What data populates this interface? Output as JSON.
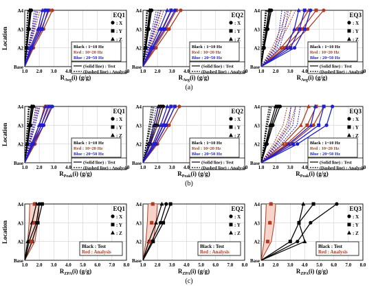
{
  "figure": {
    "y_axis_label": "Location",
    "row_captions": [
      "(a)",
      "(b)",
      "(c)"
    ],
    "col_titles": [
      "EQ1",
      "EQ2",
      "EQ3"
    ],
    "x_tick_labels": [
      "1.0",
      "2.0",
      "3.0",
      "4.0",
      "5.0",
      "6.0",
      "7.0",
      "8.0"
    ],
    "y_tick_labels": [
      "Base",
      "A2",
      "A3",
      "A4"
    ],
    "x_labels": [
      "R_Avg(i) (g/g)",
      "R_Peak(i) (g/g)",
      "R_ZPA(i) (g/g)"
    ],
    "legend_markers": [
      {
        "marker": "circle",
        "label": ": X"
      },
      {
        "marker": "square",
        "label": ": Y"
      },
      {
        "marker": "triangle",
        "label": ": Z"
      }
    ],
    "legend_freq": [
      {
        "text": "Black : 1~10 Hz",
        "color": "#000000"
      },
      {
        "text": "Red : 10~20 Hz",
        "color": "#b03a20"
      },
      {
        "text": "Blue : 20~50 Hz",
        "color": "#1f1fd0"
      }
    ],
    "legend_lines": [
      {
        "style": "solid",
        "text": "(Solid line) : Test"
      },
      {
        "style": "dashed",
        "text": "(Dashed line) : Analysis"
      }
    ],
    "legend_zpa": [
      {
        "text": "Black : Test",
        "color": "#000000"
      },
      {
        "text": "Red : Analysis",
        "color": "#b03a20"
      }
    ]
  },
  "colors": {
    "black": "#000000",
    "red": "#b03a20",
    "blue": "#1f1fd0",
    "fill_red": "#f4c4b8"
  },
  "chart_data": [
    {
      "type": "line",
      "row": "(a)",
      "title": "EQ1",
      "xlabel": "R_Avg(i) (g/g)",
      "ylabel": "Location",
      "xlim": [
        1,
        8
      ],
      "locations": [
        "Base",
        "A2",
        "A3",
        "A4"
      ],
      "series": [
        {
          "name": "Black : 1~10 Hz",
          "x": [
            1.0,
            1.15,
            1.3,
            1.45
          ]
        },
        {
          "name": "Red : 10~20 Hz",
          "x": [
            1.0,
            1.6,
            2.3,
            2.9
          ]
        },
        {
          "name": "Blue : 20~50 Hz",
          "x": [
            1.0,
            1.5,
            2.2,
            2.6
          ]
        }
      ]
    },
    {
      "type": "line",
      "row": "(a)",
      "title": "EQ2",
      "xlabel": "R_Avg(i) (g/g)",
      "ylabel": "Location",
      "xlim": [
        1,
        8
      ],
      "locations": [
        "Base",
        "A2",
        "A3",
        "A4"
      ],
      "series": [
        {
          "name": "Black : 1~10 Hz",
          "x": [
            1.0,
            1.2,
            1.4,
            1.6
          ]
        },
        {
          "name": "Red : 10~20 Hz",
          "x": [
            1.0,
            1.9,
            2.8,
            3.6
          ]
        },
        {
          "name": "Blue : 20~50 Hz",
          "x": [
            1.0,
            1.7,
            2.5,
            3.2
          ]
        }
      ]
    },
    {
      "type": "line",
      "row": "(a)",
      "title": "EQ3",
      "xlabel": "R_Avg(i) (g/g)",
      "ylabel": "Location",
      "xlim": [
        1,
        8
      ],
      "locations": [
        "Base",
        "A2",
        "A3",
        "A4"
      ],
      "series": [
        {
          "name": "Black : 1~10 Hz",
          "x": [
            1.0,
            1.2,
            1.45,
            1.7
          ]
        },
        {
          "name": "Red : 10~20 Hz",
          "x": [
            1.0,
            2.8,
            4.2,
            5.3
          ]
        },
        {
          "name": "Blue : 20~50 Hz",
          "x": [
            1.0,
            3.3,
            4.0,
            4.4
          ]
        }
      ]
    },
    {
      "type": "line",
      "row": "(b)",
      "title": "EQ1",
      "xlabel": "R_Peak(i) (g/g)",
      "ylabel": "Location",
      "xlim": [
        1,
        8
      ],
      "locations": [
        "Base",
        "A2",
        "A3",
        "A4"
      ],
      "series": [
        {
          "name": "Black : 1~10 Hz",
          "x": [
            1.0,
            1.2,
            1.4,
            1.6
          ]
        },
        {
          "name": "Red : 10~20 Hz",
          "x": [
            1.0,
            1.7,
            2.3,
            2.8
          ]
        },
        {
          "name": "Blue : 20~50 Hz",
          "x": [
            1.0,
            1.6,
            2.3,
            2.9
          ]
        }
      ]
    },
    {
      "type": "line",
      "row": "(b)",
      "title": "EQ2",
      "xlabel": "R_Peak(i) (g/g)",
      "ylabel": "Location",
      "xlim": [
        1,
        8
      ],
      "locations": [
        "Base",
        "A2",
        "A3",
        "A4"
      ],
      "series": [
        {
          "name": "Black : 1~10 Hz",
          "x": [
            1.0,
            1.5,
            2.0,
            2.4
          ]
        },
        {
          "name": "Red : 10~20 Hz",
          "x": [
            1.0,
            2.0,
            2.8,
            3.5
          ]
        },
        {
          "name": "Blue : 20~50 Hz",
          "x": [
            1.0,
            1.9,
            2.6,
            3.2
          ]
        }
      ]
    },
    {
      "type": "line",
      "row": "(b)",
      "title": "EQ3",
      "xlabel": "R_Peak(i) (g/g)",
      "ylabel": "Location",
      "xlim": [
        1,
        8
      ],
      "locations": [
        "Base",
        "A2",
        "A3",
        "A4"
      ],
      "series": [
        {
          "name": "Black : 1~10 Hz",
          "x": [
            1.0,
            1.4,
            1.8,
            2.3
          ]
        },
        {
          "name": "Red : 10~20 Hz",
          "x": [
            1.0,
            3.0,
            4.6,
            5.3
          ]
        },
        {
          "name": "Blue : 20~50 Hz",
          "x": [
            1.0,
            3.5,
            5.5,
            5.9
          ]
        }
      ]
    },
    {
      "type": "line",
      "row": "(c)",
      "title": "EQ1",
      "xlabel": "R_ZPA(i) (g/g)",
      "ylabel": "Location",
      "xlim": [
        1,
        8
      ],
      "locations": [
        "Base",
        "A2",
        "A3",
        "A4"
      ],
      "series": [
        {
          "name": "X",
          "x": [
            1.0,
            1.3,
            1.8,
            2.0
          ]
        },
        {
          "name": "Y",
          "x": [
            1.0,
            1.5,
            1.9,
            2.2
          ]
        },
        {
          "name": "Z",
          "x": [
            1.0,
            1.2,
            1.5,
            1.8
          ]
        }
      ]
    },
    {
      "type": "line",
      "row": "(c)",
      "title": "EQ2",
      "xlabel": "R_ZPA(i) (g/g)",
      "ylabel": "Location",
      "xlim": [
        1,
        8
      ],
      "locations": [
        "Base",
        "A2",
        "A3",
        "A4"
      ],
      "series": [
        {
          "name": "X",
          "x": [
            1.0,
            1.6,
            2.2,
            2.6
          ]
        },
        {
          "name": "Y",
          "x": [
            1.0,
            1.7,
            2.4,
            2.9
          ]
        },
        {
          "name": "Z",
          "x": [
            1.0,
            1.4,
            1.9,
            2.3
          ]
        }
      ]
    },
    {
      "type": "line",
      "row": "(c)",
      "title": "EQ3",
      "xlabel": "R_ZPA(i) (g/g)",
      "ylabel": "Location",
      "xlim": [
        1,
        8
      ],
      "locations": [
        "Base",
        "A2",
        "A3",
        "A4"
      ],
      "series": [
        {
          "name": "X",
          "x": [
            1.0,
            3.5,
            4.4,
            6.2
          ]
        },
        {
          "name": "Y",
          "x": [
            1.0,
            3.0,
            3.6,
            4.6
          ]
        },
        {
          "name": "Z",
          "x": [
            1.0,
            4.0,
            3.6,
            3.9
          ]
        }
      ]
    }
  ]
}
